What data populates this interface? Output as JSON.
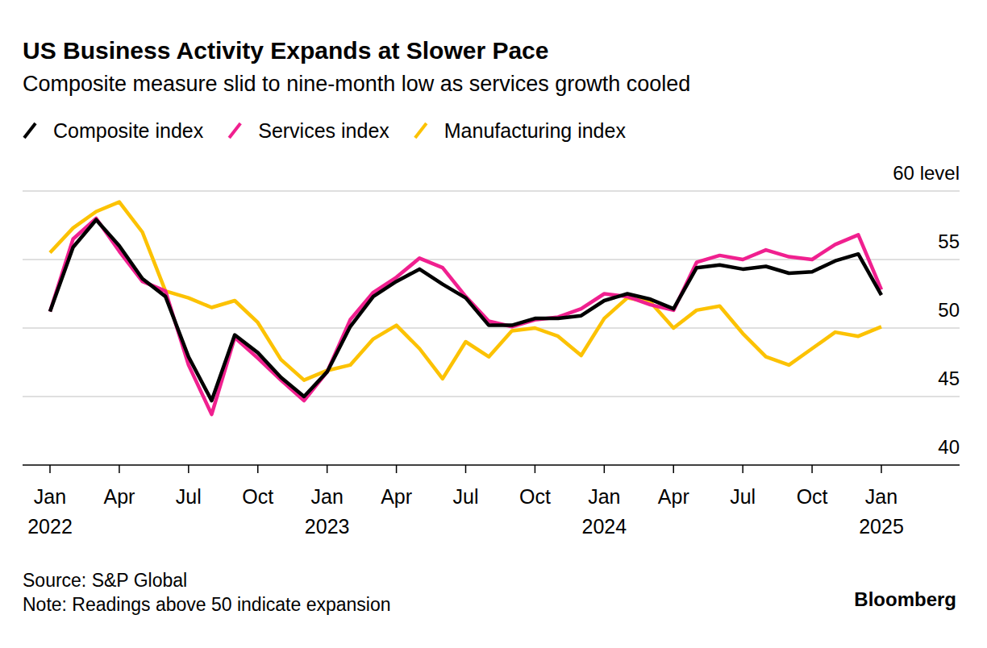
{
  "chart_data": {
    "type": "line",
    "title": "US Business Activity Expands at Slower Pace",
    "subtitle": "Composite measure slid to nine-month low as services growth cooled",
    "source": "Source: S&P Global",
    "note": "Note: Readings above 50 indicate expansion",
    "credit": "Bloomberg",
    "categories": [
      "Jan 2022",
      null,
      null,
      "Apr",
      null,
      null,
      "Jul",
      null,
      null,
      "Oct",
      null,
      null,
      "Jan 2023",
      null,
      null,
      "Apr",
      null,
      null,
      "Jul",
      null,
      null,
      "Oct",
      null,
      null,
      "Jan 2024",
      null,
      null,
      "Apr",
      null,
      null,
      "Jul",
      null,
      null,
      "Oct",
      null,
      null,
      "Jan 2025"
    ],
    "series": [
      {
        "name": "Composite index",
        "color": "#000000",
        "values": [
          51.2,
          55.9,
          57.9,
          56.0,
          53.6,
          52.3,
          47.9,
          44.7,
          49.5,
          48.2,
          46.4,
          45.0,
          46.8,
          50.1,
          52.3,
          53.4,
          54.3,
          53.2,
          52.2,
          50.2,
          50.2,
          50.7,
          50.7,
          50.9,
          52.0,
          52.5,
          52.1,
          51.4,
          54.4,
          54.6,
          54.3,
          54.5,
          54.0,
          54.1,
          54.9,
          55.4,
          52.4
        ]
      },
      {
        "name": "Services index",
        "color": "#f0208f",
        "values": [
          51.2,
          56.5,
          58.0,
          55.6,
          53.4,
          52.7,
          47.3,
          43.7,
          49.3,
          47.8,
          46.2,
          44.7,
          46.8,
          50.6,
          52.6,
          53.7,
          55.1,
          54.4,
          52.3,
          50.5,
          50.1,
          50.6,
          50.8,
          51.4,
          52.5,
          52.3,
          51.7,
          51.3,
          54.8,
          55.3,
          55.0,
          55.7,
          55.2,
          55.0,
          56.1,
          56.8,
          52.8
        ]
      },
      {
        "name": "Manufacturing index",
        "color": "#fcc203",
        "values": [
          55.5,
          57.3,
          58.5,
          59.2,
          57.0,
          52.7,
          52.2,
          51.5,
          52.0,
          50.4,
          47.7,
          46.2,
          46.9,
          47.3,
          49.2,
          50.2,
          48.5,
          46.3,
          49.0,
          47.9,
          49.8,
          50.0,
          49.4,
          48.0,
          50.7,
          52.2,
          51.9,
          50.0,
          51.3,
          51.6,
          49.6,
          47.9,
          47.3,
          48.5,
          49.7,
          49.4,
          50.1
        ]
      }
    ],
    "ylim": [
      40,
      60
    ],
    "yticks": [
      40,
      45,
      50,
      55,
      {
        "value": 60,
        "label": "60 level"
      }
    ],
    "grid": true,
    "legend": "top-left"
  }
}
